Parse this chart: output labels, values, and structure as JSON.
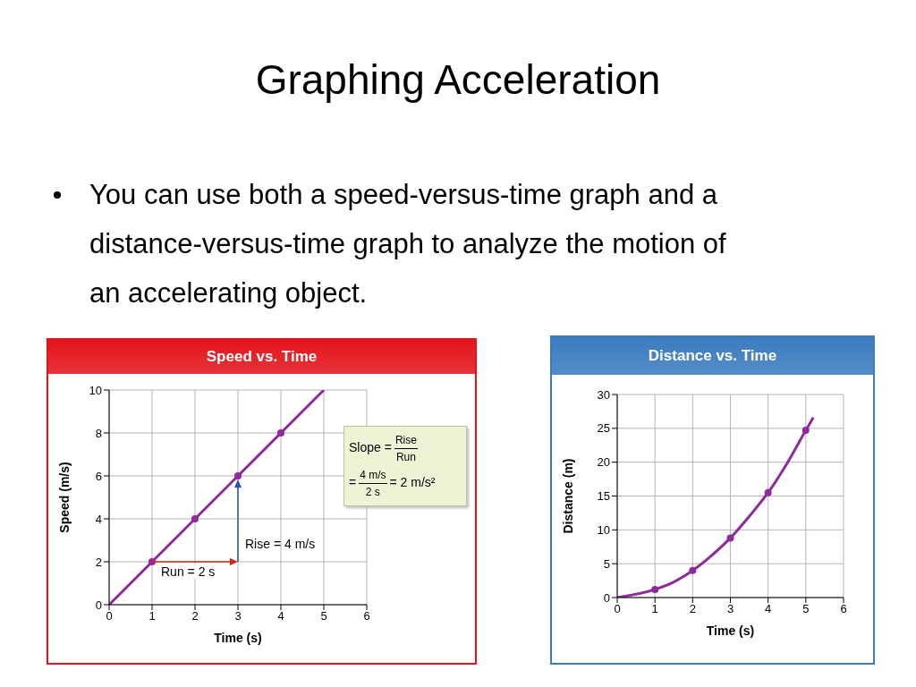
{
  "chart_data": [
    {
      "type": "line",
      "title": "Speed vs. Time",
      "xlabel": "Time (s)",
      "ylabel": "Speed (m/s)",
      "xlim": [
        0,
        6
      ],
      "ylim": [
        0,
        10
      ],
      "xticks": [
        0,
        1,
        2,
        3,
        4,
        5,
        6
      ],
      "yticks": [
        0,
        2,
        4,
        6,
        8,
        10
      ],
      "grid": true,
      "series": [
        {
          "color": "#8e2a9c",
          "marker": "none",
          "x": [
            0,
            1,
            2,
            3,
            4,
            5
          ],
          "values": [
            0,
            2,
            4,
            6,
            8,
            10
          ]
        },
        {
          "type": "scatter",
          "color": "#8e2a9c",
          "marker": "circle",
          "x": [
            1,
            2,
            3,
            4
          ],
          "values": [
            2,
            4,
            6,
            8
          ]
        }
      ],
      "annotations": [
        "Graphing Acceleration",
        "You can use both a speed-versus-time graph and a distance-versus-time graph to analyze the motion of an accelerating object.",
        "Run = 2 s",
        "Rise = 4 m/s",
        "Slope =",
        "Rise",
        "Run",
        "=",
        "4 m/s",
        "2 s",
        "= 2 m/s²"
      ]
    },
    {
      "type": "line",
      "title": "Distance vs. Time",
      "xlabel": "Time (s)",
      "ylabel": "Distance (m)",
      "xlim": [
        0,
        6
      ],
      "ylim": [
        0,
        30
      ],
      "xticks": [
        0,
        1,
        2,
        3,
        4,
        5,
        6
      ],
      "yticks": [
        0,
        5,
        10,
        15,
        20,
        25,
        30
      ],
      "grid": true,
      "series": [
        {
          "color": "#8e2a9c",
          "marker": "none",
          "x": [
            0,
            1,
            1.5,
            2,
            2.5,
            3,
            3.5,
            4,
            4.5,
            5,
            5.2
          ],
          "values": [
            0,
            1.2,
            2.3,
            4,
            6.2,
            8.8,
            12,
            15.5,
            19.8,
            24.7,
            26.6
          ]
        },
        {
          "type": "scatter",
          "color": "#8e2a9c",
          "marker": "circle",
          "x": [
            1,
            2,
            3,
            4,
            5
          ],
          "values": [
            1.2,
            4,
            8.8,
            15.5,
            24.7
          ]
        }
      ]
    }
  ]
}
